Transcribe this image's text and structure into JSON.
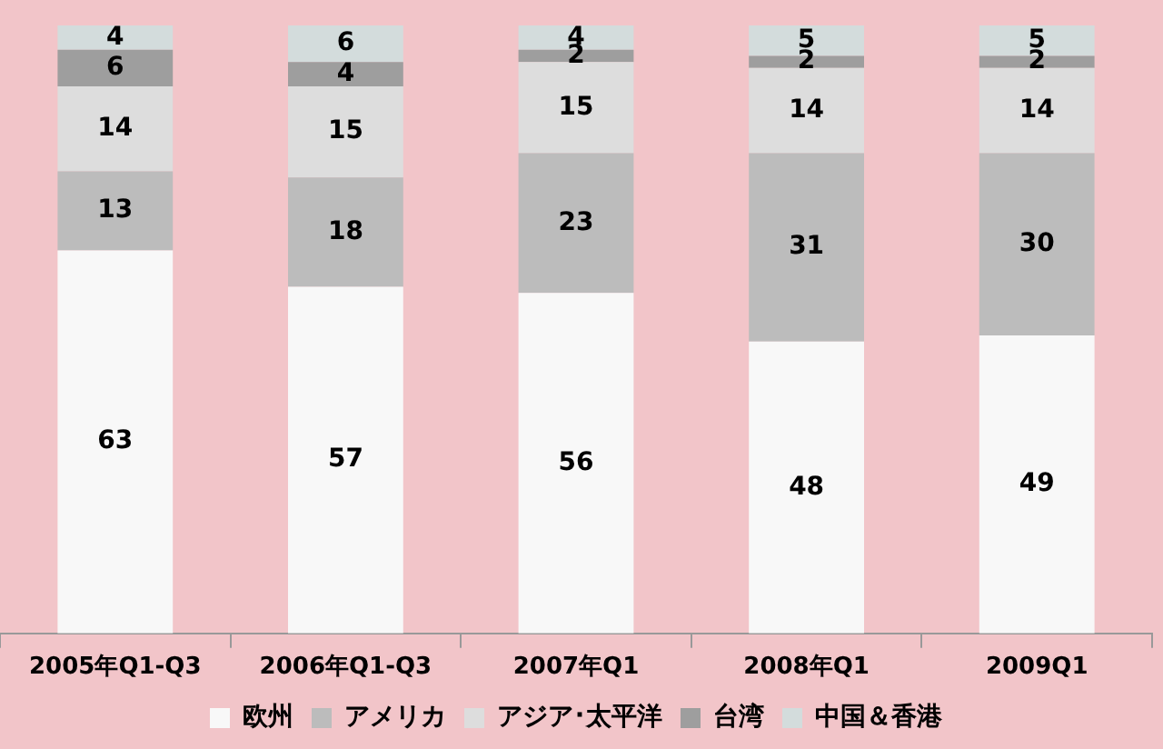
{
  "chart_data": {
    "type": "bar",
    "stacked": true,
    "data_labels": true,
    "legend": "bottom",
    "grid": false,
    "categories": [
      "2005年Q1-Q3",
      "2006年Q1-Q3",
      "2007年Q1",
      "2008年Q1",
      "2009Q1"
    ],
    "series": [
      {
        "name": "欧州",
        "color": "#f8f8f8",
        "values": [
          63,
          57,
          56,
          48,
          49
        ]
      },
      {
        "name": "アメリカ",
        "color": "#bcbcbc",
        "values": [
          13,
          18,
          23,
          31,
          30
        ]
      },
      {
        "name": "アジア･太平洋",
        "color": "#dddddd",
        "values": [
          14,
          15,
          15,
          14,
          14
        ]
      },
      {
        "name": "台湾",
        "color": "#9e9e9e",
        "values": [
          6,
          4,
          2,
          2,
          2
        ]
      },
      {
        "name": "中国＆香港",
        "color": "#d3dcdc",
        "values": [
          4,
          6,
          4,
          5,
          5
        ]
      }
    ]
  }
}
